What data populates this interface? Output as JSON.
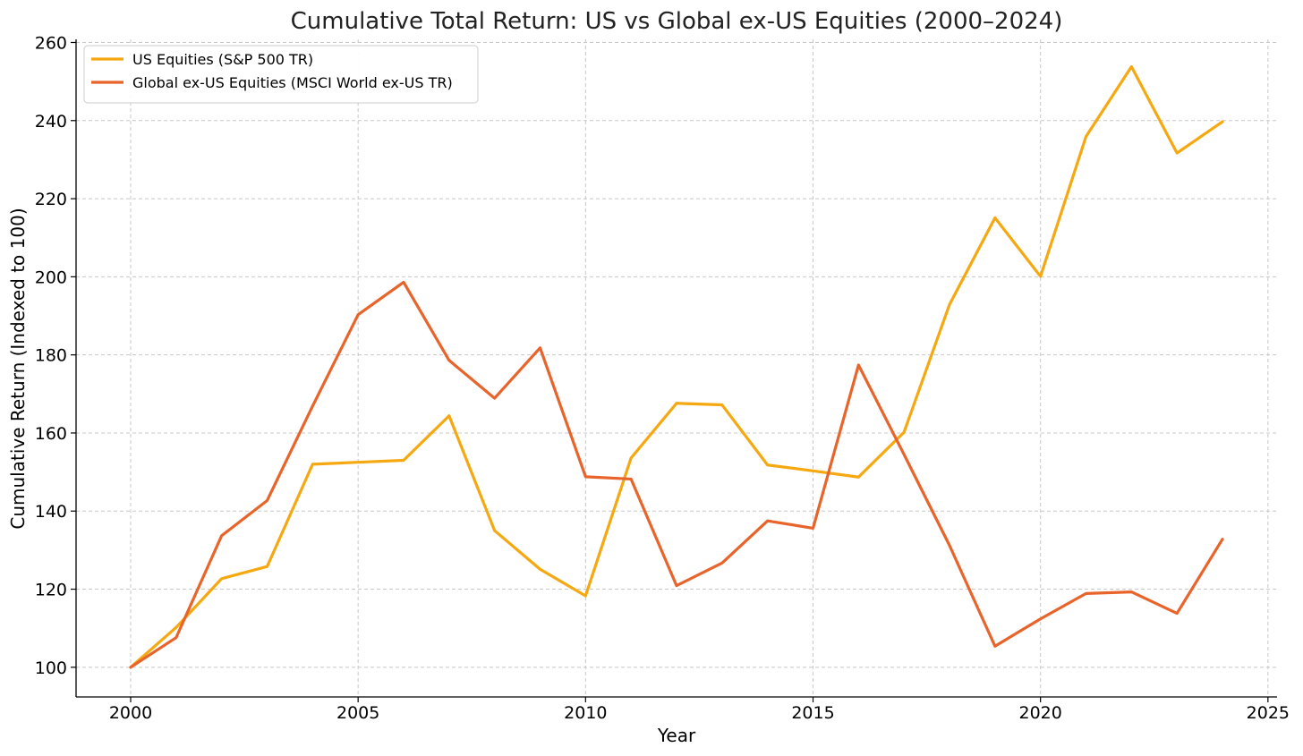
{
  "chart_data": {
    "type": "line",
    "title": "Cumulative Total Return: US vs Global ex-US Equities (2000–2024)",
    "xlabel": "Year",
    "ylabel": "Cumulative Return (Indexed to 100)",
    "x": [
      2000,
      2001,
      2002,
      2003,
      2004,
      2005,
      2006,
      2007,
      2008,
      2009,
      2010,
      2011,
      2012,
      2013,
      2014,
      2015,
      2016,
      2017,
      2018,
      2019,
      2020,
      2021,
      2022,
      2023,
      2024
    ],
    "xlim": [
      1998.8,
      2025.2
    ],
    "ylim": [
      92.4,
      260.8
    ],
    "xticks": [
      2000,
      2005,
      2010,
      2015,
      2020,
      2025
    ],
    "yticks": [
      100,
      120,
      140,
      160,
      180,
      200,
      220,
      240,
      260
    ],
    "grid": true,
    "legend_position": "top-left",
    "series": [
      {
        "name": "US Equities (S&P 500 TR)",
        "color": "#f5a810",
        "values": [
          100,
          110.2,
          122.7,
          125.8,
          152.0,
          152.5,
          153.0,
          164.4,
          135.0,
          125.1,
          118.3,
          153.6,
          167.6,
          167.2,
          151.8,
          150.3,
          148.7,
          160.2,
          192.9,
          215.1,
          200.1,
          235.9,
          253.8,
          231.7,
          239.7
        ]
      },
      {
        "name": "Global ex-US Equities (MSCI World ex-US TR)",
        "color": "#e8642a",
        "values": [
          100,
          107.6,
          133.7,
          142.7,
          166.9,
          190.3,
          198.6,
          178.6,
          168.9,
          181.8,
          148.8,
          148.2,
          120.9,
          126.7,
          137.5,
          135.6,
          177.4,
          154.5,
          131.2,
          105.4,
          112.4,
          118.9,
          119.3,
          113.8,
          132.8
        ]
      }
    ]
  }
}
